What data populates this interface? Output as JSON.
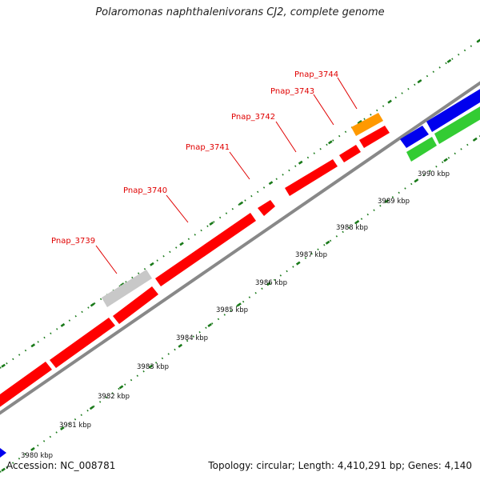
{
  "title": "Polaromonas naphthalenivorans CJ2, complete genome",
  "footer": {
    "accession": "Accession: NC_008781",
    "summary": "Topology: circular; Length: 4,410,291 bp; Genes: 4,140"
  },
  "gene_labels": [
    "Pnap_3739",
    "Pnap_3740",
    "Pnap_3741",
    "Pnap_3742",
    "Pnap_3743",
    "Pnap_3744"
  ],
  "kbp_labels": [
    "3980 kbp",
    "3981 kbp",
    "3982 kbp",
    "3983 kbp",
    "3984 kbp",
    "3985 kbp",
    "3986 kbp",
    "3987 kbp",
    "3988 kbp",
    "3989 kbp",
    "3990 kbp"
  ],
  "colors": {
    "cds_red": "#ff0000",
    "gray_feature": "#c8c8c8",
    "orange_feature": "#ff9900",
    "blue_feature": "#0000ee",
    "green_feature": "#33cc33",
    "backbone": "#888888",
    "tick_green": "#1a7a1a",
    "label_red": "#e00000"
  }
}
